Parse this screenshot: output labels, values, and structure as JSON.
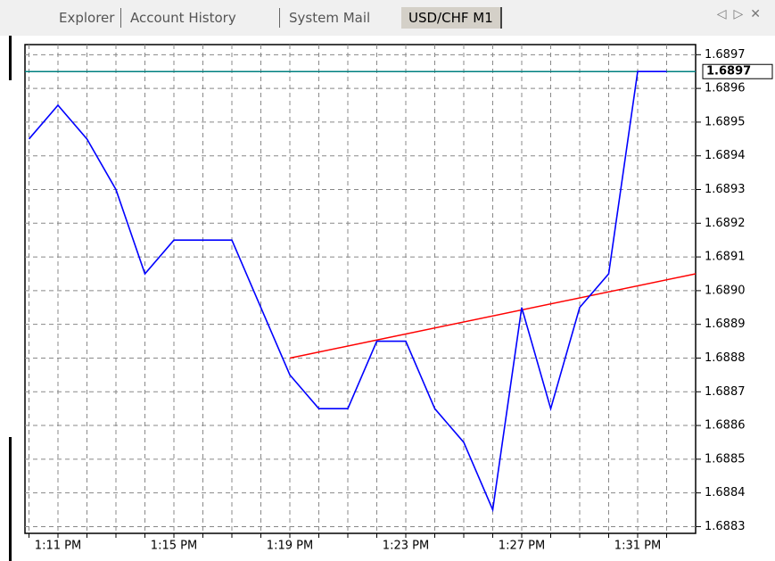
{
  "tabs": [
    "Explorer",
    "Account History",
    "System Mail",
    "USD/CHF M1"
  ],
  "active_tab": 3,
  "chart_data": {
    "type": "line",
    "categories": [
      null,
      "1:11 PM",
      null,
      null,
      null,
      "1:15 PM",
      null,
      null,
      null,
      "1:19 PM",
      null,
      null,
      null,
      "1:23 PM",
      null,
      null,
      null,
      "1:27 PM",
      null,
      null,
      null,
      "1:31 PM",
      null
    ],
    "values": [
      1.68945,
      1.68955,
      1.68945,
      1.6893,
      1.68905,
      1.68915,
      1.68915,
      1.68915,
      1.68895,
      1.68875,
      1.68865,
      1.68865,
      1.68885,
      1.68885,
      1.68865,
      1.68855,
      1.68835,
      1.68895,
      1.68865,
      1.68895,
      1.68905,
      1.68965,
      1.68965
    ],
    "color": "#0000ff",
    "price_line": {
      "value": 1.68965,
      "label": "1.6897",
      "color": "#008080"
    },
    "trend_line": {
      "values": [
        1.6888,
        1.68905
      ],
      "color": "#ff0000"
    },
    "ylim": [
      1.68828,
      1.68973
    ],
    "yticks": [
      1.6883,
      1.6884,
      1.6885,
      1.6886,
      1.6887,
      1.6888,
      1.6889,
      {
        "value": 1.689,
        "label": "1.6890"
      },
      1.6891,
      1.6892,
      1.6893,
      1.6894,
      1.6895,
      1.6896,
      1.6897
    ],
    "grid": true
  }
}
